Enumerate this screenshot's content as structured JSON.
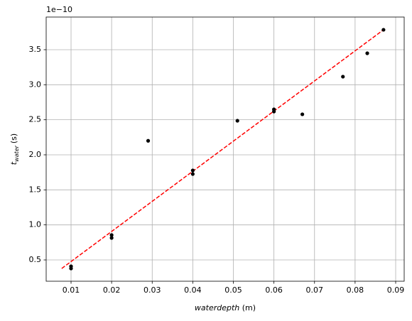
{
  "chart_data": {
    "type": "scatter",
    "offset_text": "1e−10",
    "xlabel_italic": "waterdepth",
    "xlabel_unit": "(m)",
    "ylabel_symbol": "t",
    "ylabel_subscript": "water",
    "ylabel_unit": "(s)",
    "xlim": [
      0.00387,
      0.0921
    ],
    "ylim": [
      0.196,
      3.966
    ],
    "xticks": [
      0.01,
      0.02,
      0.03,
      0.04,
      0.05,
      0.06,
      0.07,
      0.08,
      0.09
    ],
    "yticks": [
      0.5,
      {
        "value": 1,
        "label": "1.0"
      },
      1.5,
      {
        "value": 2,
        "label": "2.0"
      },
      2.5,
      {
        "value": 3,
        "label": "3.0"
      },
      3.5
    ],
    "grid": true,
    "points": {
      "color": "#000000",
      "x": [
        0.01,
        0.01,
        0.02,
        0.02,
        0.029,
        0.04,
        0.04,
        0.051,
        0.06,
        0.06,
        0.067,
        0.077,
        0.083,
        0.087
      ],
      "values": [
        0.409,
        0.378,
        0.855,
        0.814,
        2.2,
        1.777,
        1.726,
        2.486,
        2.649,
        2.618,
        2.578,
        3.115,
        3.449,
        3.784
      ]
    },
    "fit": {
      "color": "#ff0000",
      "style": "dashed",
      "x": [
        0.0077,
        0.087
      ],
      "values": [
        0.378,
        3.784
      ]
    }
  }
}
